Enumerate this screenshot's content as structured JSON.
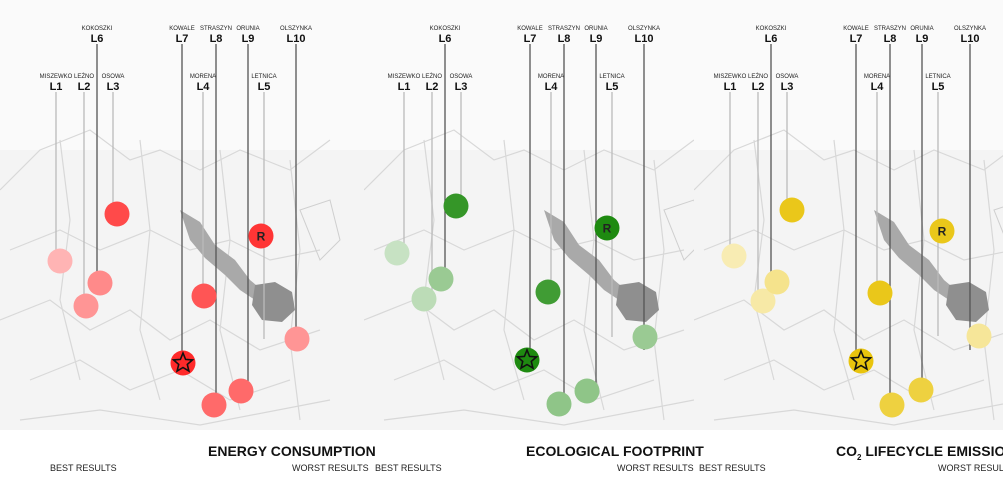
{
  "locations": [
    {
      "code": "L1",
      "name": "MISZEWKO"
    },
    {
      "code": "L2",
      "name": "LEŻNO"
    },
    {
      "code": "L3",
      "name": "OSOWA"
    },
    {
      "code": "L4",
      "name": "MORENA"
    },
    {
      "code": "L5",
      "name": "LETNICA"
    },
    {
      "code": "L6",
      "name": "KOKOSZKI"
    },
    {
      "code": "L7",
      "name": "KOWALE"
    },
    {
      "code": "L8",
      "name": "STRASZYN"
    },
    {
      "code": "L9",
      "name": "ORUNIA"
    },
    {
      "code": "L10",
      "name": "OLSZYNKA"
    }
  ],
  "reference_marker": "R",
  "best_marker_icon": "star-icon",
  "chart_data": [
    {
      "type": "scatter",
      "title": "ENERGY CONSUMPTION",
      "legend_left": "BEST RESULTS",
      "legend_right": "WORST RESULTS",
      "marker_color": "#ff2a2a",
      "stars": [
        "L7"
      ],
      "reference_color": "#ff2a2a"
    },
    {
      "type": "scatter",
      "title": "ECOLOGICAL FOOTPRINT",
      "legend_left": "BEST RESULTS",
      "legend_right": "WORST RESULTS",
      "marker_color": "#1e8a10",
      "stars": [
        "L7"
      ],
      "reference_color": "#1e8a10"
    },
    {
      "type": "scatter",
      "title_main": "CO",
      "title_sub": "2",
      "title_rest": " LIFECYCLE EMISSIONS",
      "legend_left": "BEST RESULTS",
      "legend_right": "WORST RESULTS",
      "marker_color": "#e8c100",
      "stars": [
        "L7"
      ],
      "reference_color": "#e8c100"
    }
  ]
}
